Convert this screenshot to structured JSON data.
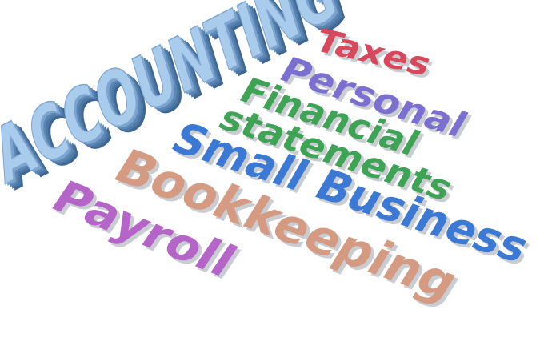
{
  "words": {
    "accounting": "ACCOUNTING",
    "taxes": "Taxes",
    "personal": "Personal",
    "financial": "Financial",
    "statements": "statements",
    "small_business": "Small Business",
    "bookkeeping": "Bookkeeping",
    "payroll": "Payroll"
  },
  "colors": {
    "accounting_face": "#9dc2e6",
    "accounting_side": "#5c86b4",
    "taxes": "#d8485c",
    "personal": "#7b6fd0",
    "financial": "#3ea355",
    "small_business": "#3b79d4",
    "bookkeeping": "#d49a82",
    "payroll": "#b564c8",
    "shadow": "#c9cdd2"
  }
}
